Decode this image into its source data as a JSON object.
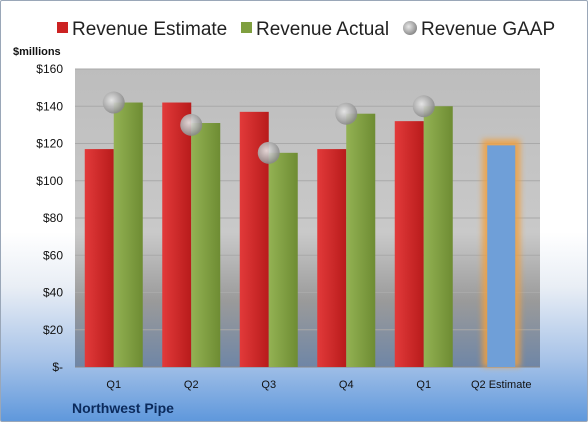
{
  "chart_data": {
    "type": "bar",
    "title": "",
    "ylabel": "$millions",
    "xlabel": "",
    "categories": [
      "Q1",
      "Q2",
      "Q3",
      "Q4",
      "Q1",
      "Q2 Estimate"
    ],
    "y_ticks": [
      "$-",
      "$20",
      "$40",
      "$60",
      "$80",
      "$100",
      "$120",
      "$140",
      "$160"
    ],
    "ylim": [
      0,
      160
    ],
    "legend_position": "top",
    "series": [
      {
        "name": "Revenue Estimate",
        "type": "bar",
        "color": "#cc2222",
        "values": [
          117,
          142,
          137,
          117,
          132,
          null
        ]
      },
      {
        "name": "Revenue Actual",
        "type": "bar",
        "color": "#7f9f3f",
        "values": [
          142,
          131,
          115,
          136,
          140,
          null
        ]
      },
      {
        "name": "Revenue GAAP",
        "type": "scatter",
        "color": "#a8a8a8",
        "values": [
          142,
          130,
          115,
          136,
          140,
          null
        ]
      }
    ],
    "highlight": {
      "category": "Q2 Estimate",
      "value": 119,
      "color": "#6f9fd8",
      "glow_color": "#f0a040"
    },
    "company": "Northwest Pipe"
  }
}
